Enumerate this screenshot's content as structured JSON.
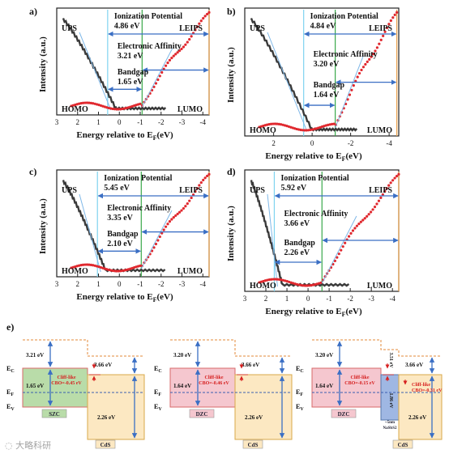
{
  "panels": [
    {
      "id": "a",
      "label": "a)",
      "ylabel": "Intensity (a.u.)",
      "xlabel": "Energy relative to E",
      "xlabel_sub": "F",
      "xlabel_tail": "(eV)",
      "xticks": [
        "3",
        "2",
        "1",
        "0",
        "-1",
        "-2",
        "-3",
        "-4"
      ],
      "xlim": [
        3,
        -4.3
      ],
      "tag_left": "UPS",
      "tag_right": "LEIPS",
      "bottom_left": "HOMO",
      "bottom_right": "LUMO",
      "ip_label": "Ionization  Potential",
      "ip_value": "4.86 eV",
      "ea_label": "Electronic Affinity",
      "ea_value": "3.21 eV",
      "bg_label": "Bandgap",
      "bg_value": "1.65 eV",
      "homo_edge": 0.56,
      "lumo_edge": -1.09,
      "lumo_level": -4.3
    },
    {
      "id": "b",
      "label": "b)",
      "ylabel": "Intensity (a.u.)",
      "xlabel": "Energy relative to E",
      "xlabel_sub": "F",
      "xlabel_tail": "(eV)",
      "xticks": [
        "2",
        "0",
        "-2",
        "-4"
      ],
      "xlim": [
        3.5,
        -4.5
      ],
      "tag_left": "UPS",
      "tag_right": "LEIPS",
      "bottom_left": "HOMO",
      "bottom_right": "LUMO",
      "ip_label": "Ionization  Potential",
      "ip_value": "4.84 eV",
      "ea_label": "Electronic Affinity",
      "ea_value": "3.20 eV",
      "bg_label": "Bandgap",
      "bg_value": "1.64 eV",
      "homo_edge": 0.44,
      "lumo_edge": -1.2,
      "lumo_level": -4.4
    },
    {
      "id": "c",
      "label": "c)",
      "ylabel": "Intensity (a.u.)",
      "xlabel": "Energy relative to E",
      "xlabel_sub": "F",
      "xlabel_tail": "(eV)",
      "xticks": [
        "3",
        "2",
        "1",
        "0",
        "-1",
        "-2",
        "-3",
        "-4"
      ],
      "xlim": [
        3,
        -4.3
      ],
      "tag_left": "UPS",
      "tag_right": "LEIPS",
      "bottom_left": "HOMO",
      "bottom_right": "LUMO",
      "ip_label": "Ionization  Potential",
      "ip_value": "5.45 eV",
      "ea_label": "Electronic Affinity",
      "ea_value": "3.35 eV",
      "bg_label": "Bandgap",
      "bg_value": "2.10 eV",
      "homo_edge": 1.05,
      "lumo_edge": -1.05,
      "lumo_level": -4.3
    },
    {
      "id": "d",
      "label": "d)",
      "ylabel": "Intensity (a.u.)",
      "xlabel": "Energy relative to E",
      "xlabel_sub": "F",
      "xlabel_tail": "(eV)",
      "xticks": [
        "3",
        "2",
        "1",
        "0",
        "-1",
        "-2",
        "-3",
        "-4"
      ],
      "xlim": [
        3,
        -4.3
      ],
      "tag_left": "UPS",
      "tag_right": "LEIPS",
      "bottom_left": "HOMO",
      "bottom_right": "LUMO",
      "ip_label": "Ionization  Potential",
      "ip_value": "5.92 eV",
      "ea_label": "Electronic Affinity",
      "ea_value": "3.66 eV",
      "bg_label": "Bandgap",
      "bg_value": "2.26 eV",
      "homo_edge": 1.6,
      "lumo_edge": -0.66,
      "lumo_level": -4.3
    }
  ],
  "panel_e": {
    "label": "e)",
    "diagrams": [
      {
        "id": "szc",
        "name": "SZC",
        "ea": "3.21 eV",
        "bandgap": "1.65 eV",
        "cbo": "Cliff-like\nCBO=-0.45 eV",
        "cds_ea": "3.66 eV",
        "cds_bg": "2.26 eV",
        "cds_name": "CdS",
        "fill": "#b9dca9"
      },
      {
        "id": "dzc",
        "name": "DZC",
        "ea": "3.20 eV",
        "bandgap": "1.64 eV",
        "cbo": "Cliff-like\nCBO=-0.46 eV",
        "cds_ea": "3.66 eV",
        "cds_bg": "2.26 eV",
        "cds_name": "CdS",
        "fill": "#f5c7cf"
      },
      {
        "id": "dzc-nano",
        "name": "DZC",
        "ea": "3.20 eV",
        "bandgap": "1.64 eV",
        "cbo": "Cliff-like\nCBO=-0.15 eV",
        "cbo2": "Cliff-like\nCBO=-0.31 eV",
        "interlayer_name": "~5nm\nNaSbS2",
        "interlayer_ea": "3.51 eV",
        "interlayer_bg": "1.86 eV",
        "cds_ea": "3.66 eV",
        "cds_bg": "2.26 eV",
        "cds_name": "CdS",
        "fill": "#f5c7cf"
      }
    ],
    "level_labels": {
      "ec": "E",
      "ec_sub": "C",
      "ef": "E",
      "ef_sub": "F",
      "ev": "E",
      "ev_sub": "V"
    }
  },
  "watermark": "大略科研",
  "colors": {
    "ups": "#3a3a3a",
    "leips": "#e0282e",
    "arrow": "#3b6fc4",
    "homo_line": "#7fd3f0",
    "lumo_line": "#3aa84a",
    "right_line": "#e9a04a"
  }
}
